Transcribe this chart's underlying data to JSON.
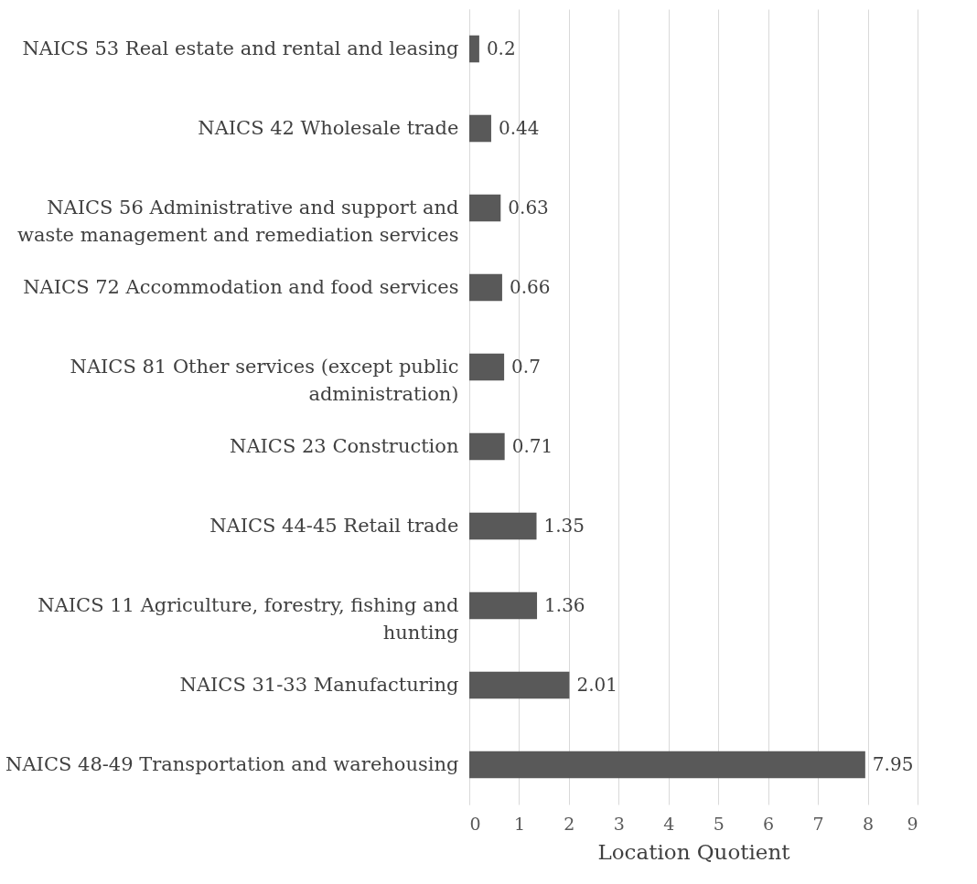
{
  "chart_data": {
    "type": "bar",
    "orientation": "horizontal",
    "xlabel": "Location Quotient",
    "categories": [
      "NAICS 53 Real estate and rental and leasing",
      "NAICS 42 Wholesale trade",
      "NAICS 56 Administrative and support and waste management and remediation services",
      "NAICS 72 Accommodation and food services",
      "NAICS 81 Other services (except public administration)",
      "NAICS 23 Construction",
      "NAICS 44-45 Retail trade",
      "NAICS 11 Agriculture, forestry, fishing and hunting",
      "NAICS 31-33 Manufacturing",
      "NAICS 48-49 Transportation and warehousing"
    ],
    "values": [
      0.2,
      0.44,
      0.63,
      0.66,
      0.7,
      0.71,
      1.35,
      1.36,
      2.01,
      7.95
    ],
    "color": "#595959",
    "xlim": [
      0,
      9
    ],
    "xticks": [
      0,
      1,
      2,
      3,
      4,
      5,
      6,
      7,
      8,
      9
    ],
    "grid": "x",
    "data_labels": true
  }
}
